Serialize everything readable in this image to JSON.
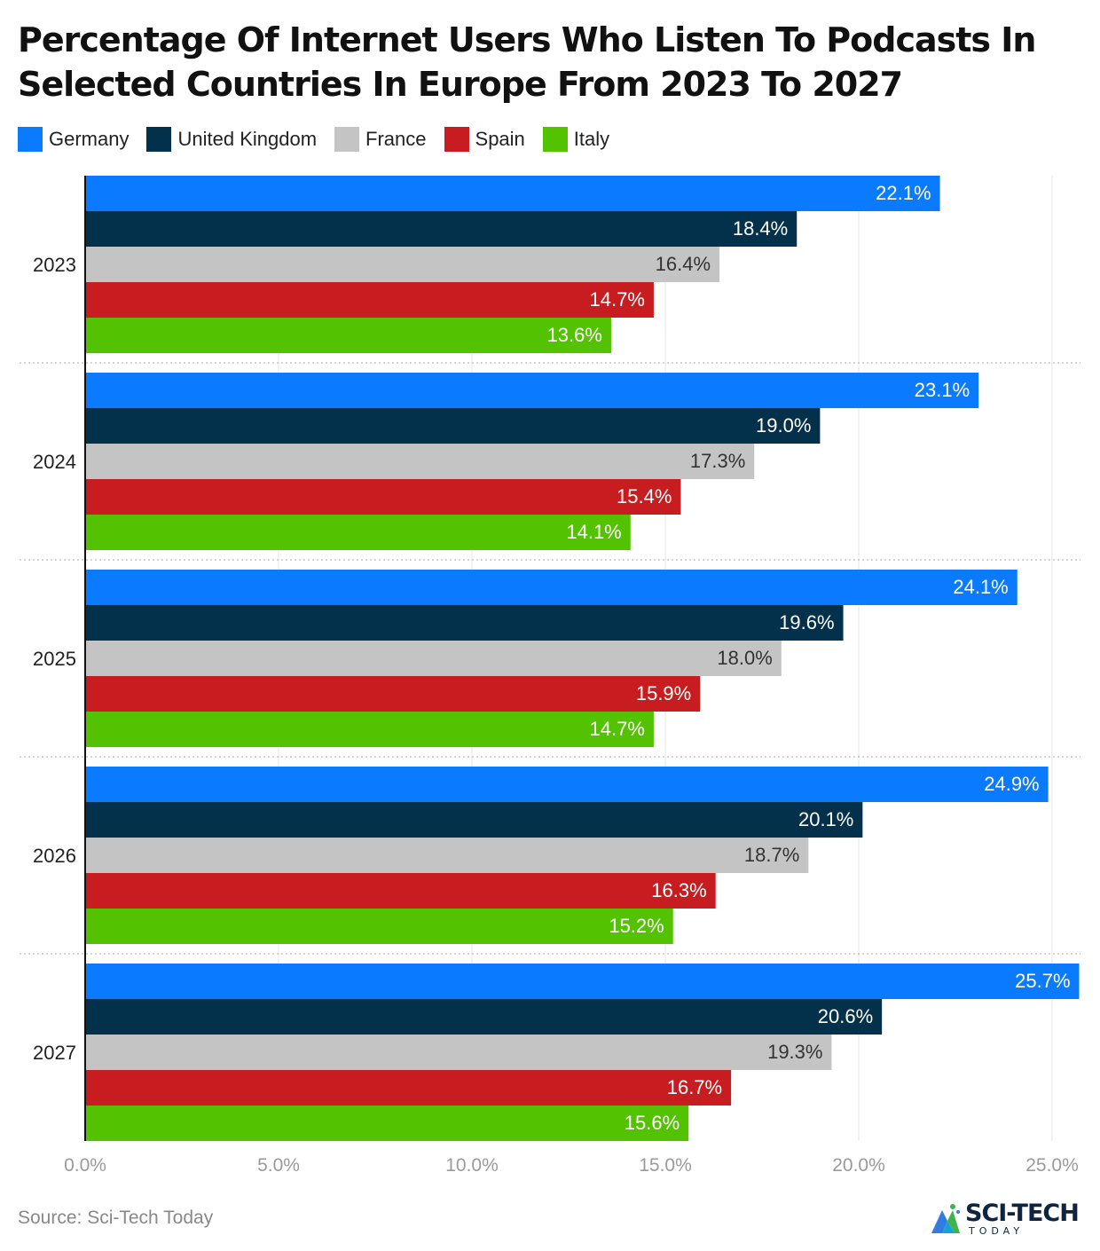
{
  "chart_data": {
    "type": "bar",
    "orientation": "horizontal",
    "title": "Percentage Of Internet Users Who Listen To Podcasts In Selected Countries In Europe From 2023 To 2027",
    "categories": [
      "2023",
      "2024",
      "2025",
      "2026",
      "2027"
    ],
    "series": [
      {
        "name": "Germany",
        "color": "#0a7aff",
        "values": [
          22.1,
          23.1,
          24.1,
          24.9,
          25.7
        ]
      },
      {
        "name": "United Kingdom",
        "color": "#03304a",
        "values": [
          18.4,
          19.0,
          19.6,
          20.1,
          20.6
        ]
      },
      {
        "name": "France",
        "color": "#c4c4c4",
        "values": [
          16.4,
          17.3,
          18.0,
          18.7,
          19.3
        ]
      },
      {
        "name": "Spain",
        "color": "#c71d20",
        "values": [
          14.7,
          15.4,
          15.9,
          16.3,
          16.7
        ]
      },
      {
        "name": "Italy",
        "color": "#53c200",
        "values": [
          13.6,
          14.1,
          14.7,
          15.2,
          15.6
        ]
      }
    ],
    "xlim": [
      0,
      26
    ],
    "xticks": [
      0,
      5,
      10,
      15,
      20,
      25
    ],
    "tick_labels": [
      "0.0%",
      "5.0%",
      "10.0%",
      "15.0%",
      "20.0%",
      "25.0%"
    ],
    "value_suffix": "%",
    "grid": true,
    "legend_position": "top-left"
  },
  "footer": {
    "source": "Source: Sci-Tech Today",
    "logo_text": "SCI-TECH",
    "logo_sub": "TODAY"
  }
}
